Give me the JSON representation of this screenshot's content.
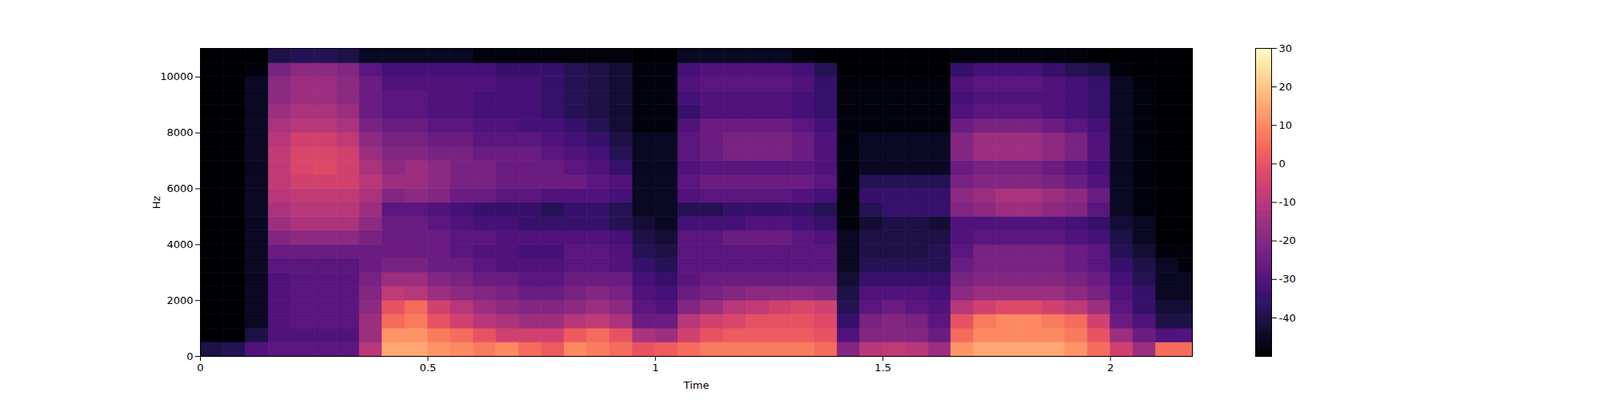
{
  "chart_data": {
    "type": "heatmap",
    "x_label": "Time",
    "y_label": "Hz",
    "xlim": [
      0,
      2.18
    ],
    "ylim": [
      0,
      11025
    ],
    "xticks": [
      0,
      0.5,
      1,
      1.5,
      2
    ],
    "yticks": [
      0,
      2000,
      4000,
      6000,
      8000,
      10000
    ],
    "color": "magma",
    "x_edges": [
      0,
      0.05,
      0.1,
      0.15,
      0.2,
      0.25,
      0.3,
      0.35,
      0.4,
      0.45,
      0.5,
      0.55,
      0.6,
      0.65,
      0.7,
      0.75,
      0.8,
      0.85,
      0.9,
      0.95,
      1,
      1.05,
      1.1,
      1.15,
      1.2,
      1.25,
      1.3,
      1.35,
      1.4,
      1.45,
      1.5,
      1.55,
      1.6,
      1.65,
      1.7,
      1.75,
      1.8,
      1.85,
      1.9,
      1.95,
      2,
      2.05,
      2.1,
      2.15,
      2.18
    ],
    "y_edges": [
      0,
      500,
      1000,
      1500,
      2000,
      2500,
      3000,
      3500,
      4000,
      4500,
      5000,
      5500,
      6000,
      6500,
      7000,
      7500,
      8000,
      8500,
      9000,
      9500,
      10000,
      10500,
      11025
    ],
    "cells": [
      [
        -40,
        -38,
        -30,
        -28,
        -28,
        -28,
        -28,
        -10,
        15,
        15,
        12,
        10,
        8,
        10,
        5,
        2,
        10,
        8,
        5,
        0,
        2,
        5,
        8,
        8,
        8,
        8,
        8,
        5,
        -20,
        -10,
        -8,
        -10,
        -15,
        12,
        15,
        15,
        15,
        15,
        12,
        5,
        -5,
        -15,
        5,
        5
      ],
      [
        -50,
        -50,
        -40,
        -30,
        -30,
        -30,
        -30,
        -15,
        12,
        12,
        8,
        5,
        0,
        -5,
        -5,
        -5,
        2,
        5,
        0,
        -12,
        -15,
        -5,
        0,
        2,
        2,
        2,
        2,
        0,
        -30,
        -20,
        -20,
        -20,
        -25,
        5,
        10,
        10,
        10,
        10,
        8,
        0,
        -15,
        -25,
        -30,
        -30
      ],
      [
        -50,
        -50,
        -45,
        -30,
        -28,
        -28,
        -28,
        -15,
        5,
        8,
        0,
        -5,
        -10,
        -12,
        -15,
        -15,
        -10,
        -8,
        -12,
        -25,
        -25,
        -10,
        -5,
        -3,
        0,
        0,
        0,
        -2,
        -35,
        -22,
        -20,
        -22,
        -28,
        0,
        8,
        10,
        10,
        8,
        5,
        -5,
        -25,
        -30,
        -40,
        -40
      ],
      [
        -50,
        -50,
        -45,
        -30,
        -28,
        -28,
        -28,
        -18,
        0,
        5,
        -5,
        -10,
        -15,
        -18,
        -20,
        -20,
        -18,
        -15,
        -18,
        -28,
        -30,
        -20,
        -15,
        -10,
        -8,
        -5,
        -3,
        -5,
        -38,
        -28,
        -25,
        -28,
        -30,
        -10,
        -5,
        -2,
        -2,
        -5,
        -8,
        -15,
        -28,
        -35,
        -42,
        -42
      ],
      [
        -50,
        -50,
        -45,
        -30,
        -28,
        -28,
        -28,
        -20,
        -8,
        -10,
        -15,
        -18,
        -20,
        -22,
        -25,
        -25,
        -22,
        -20,
        -22,
        -30,
        -32,
        -25,
        -22,
        -20,
        -18,
        -18,
        -18,
        -20,
        -40,
        -30,
        -30,
        -30,
        -32,
        -18,
        -15,
        -15,
        -15,
        -15,
        -18,
        -22,
        -30,
        -35,
        -45,
        -45
      ],
      [
        -50,
        -50,
        -45,
        -30,
        -28,
        -28,
        -28,
        -22,
        -15,
        -15,
        -20,
        -22,
        -25,
        -25,
        -28,
        -28,
        -25,
        -25,
        -25,
        -32,
        -35,
        -28,
        -25,
        -25,
        -25,
        -25,
        -25,
        -25,
        -42,
        -35,
        -35,
        -35,
        -35,
        -22,
        -20,
        -20,
        -20,
        -20,
        -22,
        -25,
        -32,
        -38,
        -45,
        -45
      ],
      [
        -50,
        -50,
        -45,
        -28,
        -28,
        -28,
        -28,
        -25,
        -22,
        -22,
        -25,
        -25,
        -28,
        -30,
        -30,
        -30,
        -28,
        -28,
        -30,
        -35,
        -38,
        -28,
        -28,
        -28,
        -28,
        -28,
        -28,
        -28,
        -45,
        -38,
        -38,
        -38,
        -38,
        -25,
        -22,
        -22,
        -22,
        -22,
        -25,
        -28,
        -35,
        -40,
        -45,
        -48
      ],
      [
        -50,
        -50,
        -45,
        -25,
        -25,
        -25,
        -25,
        -25,
        -25,
        -25,
        -25,
        -28,
        -30,
        -30,
        -32,
        -32,
        -28,
        -28,
        -30,
        -38,
        -40,
        -28,
        -28,
        -28,
        -28,
        -28,
        -28,
        -28,
        -45,
        -40,
        -40,
        -40,
        -38,
        -28,
        -22,
        -22,
        -22,
        -22,
        -25,
        -28,
        -38,
        -42,
        -48,
        -48
      ],
      [
        -50,
        -50,
        -45,
        -20,
        -18,
        -18,
        -18,
        -22,
        -25,
        -25,
        -25,
        -28,
        -28,
        -30,
        -30,
        -30,
        -30,
        -30,
        -32,
        -40,
        -42,
        -28,
        -28,
        -25,
        -25,
        -25,
        -28,
        -30,
        -45,
        -40,
        -40,
        -40,
        -40,
        -30,
        -28,
        -28,
        -28,
        -28,
        -30,
        -32,
        -40,
        -45,
        -50,
        -50
      ],
      [
        -50,
        -50,
        -45,
        -15,
        -12,
        -12,
        -12,
        -18,
        -25,
        -25,
        -28,
        -30,
        -32,
        -32,
        -35,
        -35,
        -35,
        -35,
        -38,
        -42,
        -45,
        -32,
        -32,
        -32,
        -30,
        -30,
        -32,
        -35,
        -48,
        -42,
        -40,
        -40,
        -42,
        -30,
        -30,
        -30,
        -30,
        -30,
        -32,
        -35,
        -42,
        -45,
        -50,
        -50
      ],
      [
        -50,
        -50,
        -45,
        -12,
        -10,
        -10,
        -10,
        -15,
        -28,
        -28,
        -30,
        -32,
        -35,
        -35,
        -35,
        -38,
        -35,
        -35,
        -38,
        -45,
        -45,
        -38,
        -38,
        -35,
        -35,
        -35,
        -35,
        -38,
        -48,
        -38,
        -35,
        -35,
        -35,
        -20,
        -18,
        -15,
        -15,
        -18,
        -20,
        -28,
        -45,
        -48,
        -50,
        -50
      ],
      [
        -50,
        -50,
        -45,
        -10,
        -8,
        -8,
        -8,
        -12,
        -20,
        -18,
        -20,
        -25,
        -25,
        -28,
        -28,
        -30,
        -30,
        -30,
        -32,
        -45,
        -45,
        -30,
        -28,
        -28,
        -28,
        -28,
        -30,
        -32,
        -48,
        -35,
        -35,
        -35,
        -35,
        -18,
        -15,
        -12,
        -12,
        -15,
        -18,
        -25,
        -45,
        -48,
        -50,
        -50
      ],
      [
        -50,
        -50,
        -45,
        -8,
        -5,
        -5,
        -5,
        -10,
        -15,
        -15,
        -18,
        -22,
        -22,
        -25,
        -25,
        -25,
        -25,
        -28,
        -30,
        -45,
        -45,
        -28,
        -25,
        -25,
        -25,
        -25,
        -25,
        -28,
        -48,
        -38,
        -38,
        -38,
        -38,
        -22,
        -20,
        -20,
        -20,
        -22,
        -25,
        -30,
        -45,
        -48,
        -50,
        -50
      ],
      [
        -50,
        -50,
        -45,
        -8,
        -3,
        -2,
        -5,
        -12,
        -18,
        -15,
        -18,
        -22,
        -22,
        -25,
        -25,
        -25,
        -28,
        -30,
        -35,
        -45,
        -45,
        -30,
        -28,
        -28,
        -28,
        -28,
        -28,
        -30,
        -48,
        -45,
        -45,
        -45,
        -45,
        -25,
        -22,
        -22,
        -22,
        -25,
        -28,
        -32,
        -45,
        -48,
        -50,
        -50
      ],
      [
        -50,
        -50,
        -45,
        -8,
        -3,
        -3,
        -5,
        -15,
        -20,
        -20,
        -22,
        -22,
        -25,
        -25,
        -25,
        -28,
        -30,
        -32,
        -38,
        -45,
        -45,
        -28,
        -25,
        -22,
        -22,
        -22,
        -25,
        -30,
        -48,
        -45,
        -45,
        -45,
        -45,
        -20,
        -15,
        -15,
        -15,
        -18,
        -22,
        -30,
        -45,
        -48,
        -50,
        -50
      ],
      [
        -50,
        -50,
        -45,
        -10,
        -5,
        -5,
        -8,
        -18,
        -22,
        -22,
        -25,
        -25,
        -28,
        -28,
        -28,
        -30,
        -32,
        -35,
        -40,
        -45,
        -45,
        -28,
        -25,
        -22,
        -22,
        -22,
        -25,
        -30,
        -48,
        -45,
        -45,
        -45,
        -45,
        -20,
        -15,
        -15,
        -15,
        -18,
        -22,
        -30,
        -45,
        -48,
        -50,
        -50
      ],
      [
        -50,
        -50,
        -45,
        -12,
        -10,
        -10,
        -12,
        -22,
        -25,
        -25,
        -28,
        -28,
        -30,
        -30,
        -32,
        -32,
        -35,
        -38,
        -42,
        -48,
        -48,
        -30,
        -25,
        -25,
        -25,
        -25,
        -28,
        -32,
        -48,
        -48,
        -48,
        -48,
        -48,
        -25,
        -22,
        -22,
        -22,
        -25,
        -28,
        -32,
        -45,
        -48,
        -50,
        -50
      ],
      [
        -50,
        -50,
        -45,
        -15,
        -12,
        -12,
        -15,
        -25,
        -28,
        -28,
        -30,
        -30,
        -32,
        -32,
        -32,
        -35,
        -38,
        -40,
        -42,
        -48,
        -48,
        -35,
        -30,
        -30,
        -30,
        -30,
        -32,
        -35,
        -48,
        -48,
        -48,
        -48,
        -48,
        -30,
        -28,
        -28,
        -28,
        -30,
        -32,
        -35,
        -45,
        -48,
        -50,
        -50
      ],
      [
        -50,
        -50,
        -45,
        -18,
        -15,
        -15,
        -18,
        -25,
        -28,
        -28,
        -30,
        -30,
        -32,
        -32,
        -32,
        -35,
        -38,
        -40,
        -42,
        -48,
        -48,
        -32,
        -30,
        -30,
        -30,
        -30,
        -32,
        -35,
        -48,
        -48,
        -48,
        -48,
        -48,
        -32,
        -30,
        -30,
        -30,
        -30,
        -32,
        -35,
        -45,
        -48,
        -50,
        -50
      ],
      [
        -50,
        -50,
        -45,
        -18,
        -15,
        -15,
        -18,
        -25,
        -30,
        -30,
        -30,
        -30,
        -30,
        -32,
        -32,
        -35,
        -38,
        -40,
        -42,
        -48,
        -48,
        -30,
        -28,
        -28,
        -28,
        -28,
        -30,
        -35,
        -48,
        -48,
        -48,
        -48,
        -48,
        -30,
        -28,
        -28,
        -28,
        -30,
        -32,
        -35,
        -45,
        -48,
        -50,
        -50
      ],
      [
        -50,
        -50,
        -48,
        -22,
        -18,
        -18,
        -20,
        -28,
        -32,
        -32,
        -32,
        -32,
        -32,
        -35,
        -35,
        -35,
        -38,
        -40,
        -42,
        -48,
        -48,
        -32,
        -30,
        -30,
        -30,
        -30,
        -32,
        -38,
        -50,
        -50,
        -50,
        -50,
        -50,
        -35,
        -32,
        -32,
        -32,
        -35,
        -38,
        -40,
        -48,
        -50,
        -50,
        -50
      ],
      [
        -50,
        -50,
        -50,
        -40,
        -38,
        -38,
        -40,
        -45,
        -45,
        -45,
        -45,
        -45,
        -48,
        -48,
        -48,
        -48,
        -48,
        -48,
        -48,
        -50,
        -50,
        -45,
        -45,
        -45,
        -45,
        -45,
        -48,
        -50,
        -50,
        -50,
        -50,
        -50,
        -50,
        -48,
        -48,
        -48,
        -48,
        -48,
        -48,
        -50,
        -50,
        -50,
        -50,
        -50
      ]
    ],
    "colorbar": {
      "range": [
        -50,
        30
      ],
      "ticks": [
        -40,
        -30,
        -20,
        -10,
        0,
        10,
        20,
        30
      ]
    }
  }
}
